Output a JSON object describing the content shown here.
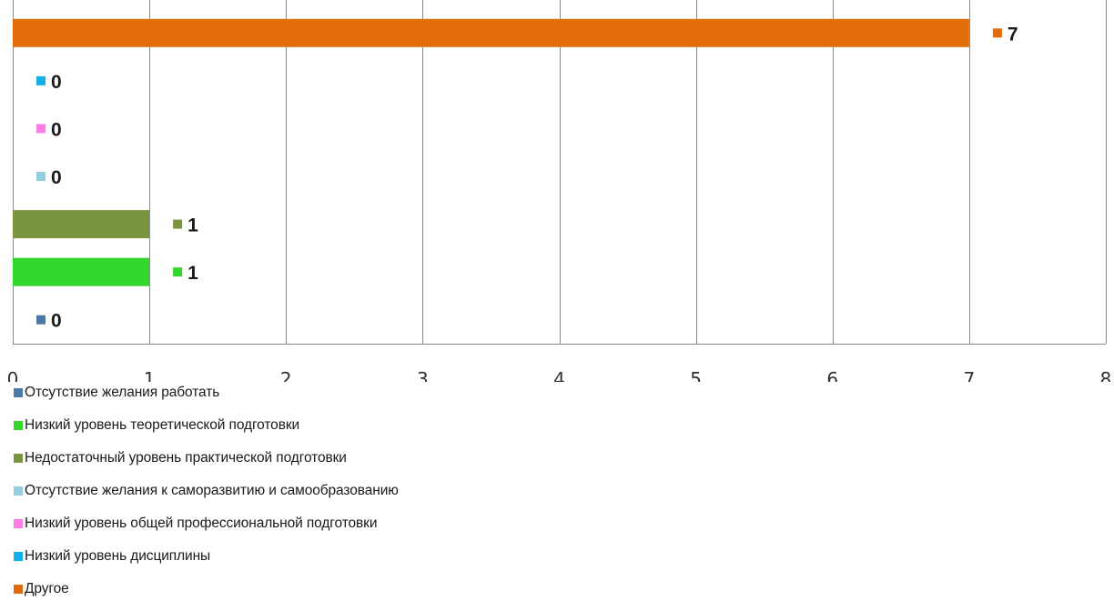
{
  "chart_data": {
    "type": "bar",
    "orientation": "horizontal",
    "title": "",
    "xlabel": "",
    "ylabel": "",
    "xlim": [
      0,
      8
    ],
    "x_ticks": [
      "0",
      "1",
      "2",
      "3",
      "4",
      "5",
      "6",
      "7",
      "8"
    ],
    "grid": true,
    "legend_position": "bottom",
    "series": [
      {
        "name": "Отсутствие желания работать",
        "value": 0,
        "color": "#4a78a8"
      },
      {
        "name": "Низкий уровень теоретической подготовки",
        "value": 1,
        "color": "#33d62a"
      },
      {
        "name": "Недостаточный уровень практической подготовки",
        "value": 1,
        "color": "#7b9440"
      },
      {
        "name": "Отсутствие желания к саморазвитию и самообразованию",
        "value": 0,
        "color": "#94cde0"
      },
      {
        "name": "Низкий уровень общей профессиональной подготовки",
        "value": 0,
        "color": "#ff7be8"
      },
      {
        "name": "Низкий уровень дисциплины",
        "value": 0,
        "color": "#12aee8"
      },
      {
        "name": "Другое",
        "value": 7,
        "color": "#e36c0a"
      }
    ]
  }
}
